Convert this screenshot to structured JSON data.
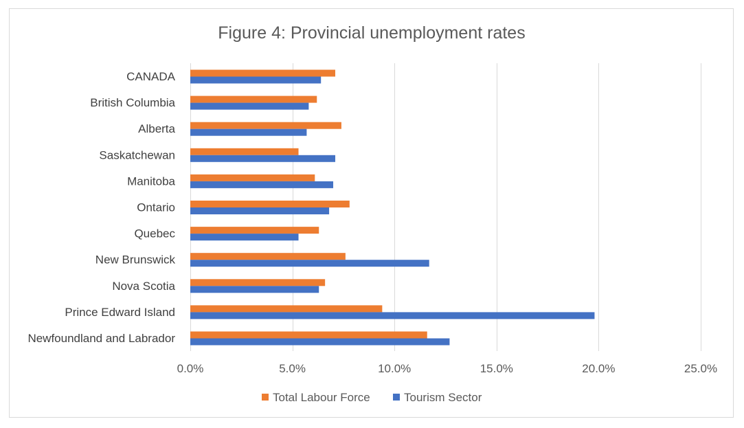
{
  "chart_data": {
    "type": "bar",
    "orientation": "horizontal",
    "title": "Figure 4: Provincial unemployment rates",
    "xlabel": "",
    "ylabel": "",
    "xlim": [
      0,
      0.25
    ],
    "x_ticks": [
      0,
      0.05,
      0.1,
      0.15,
      0.2,
      0.25
    ],
    "x_tick_labels": [
      "0.0%",
      "5.0%",
      "10.0%",
      "15.0%",
      "20.0%",
      "25.0%"
    ],
    "grid": "vertical",
    "legend_position": "bottom",
    "categories": [
      "CANADA",
      "British Columbia",
      "Alberta",
      "Saskatchewan",
      "Manitoba",
      "Ontario",
      "Quebec",
      "New Brunswick",
      "Nova Scotia",
      "Prince Edward Island",
      "Newfoundland and Labrador"
    ],
    "series": [
      {
        "name": "Total Labour Force",
        "color": "#ed7d31",
        "values": [
          0.071,
          0.062,
          0.074,
          0.053,
          0.061,
          0.078,
          0.063,
          0.076,
          0.066,
          0.094,
          0.116
        ]
      },
      {
        "name": "Tourism Sector",
        "color": "#4472c4",
        "values": [
          0.064,
          0.058,
          0.057,
          0.071,
          0.07,
          0.068,
          0.053,
          0.117,
          0.063,
          0.198,
          0.127
        ]
      }
    ]
  }
}
